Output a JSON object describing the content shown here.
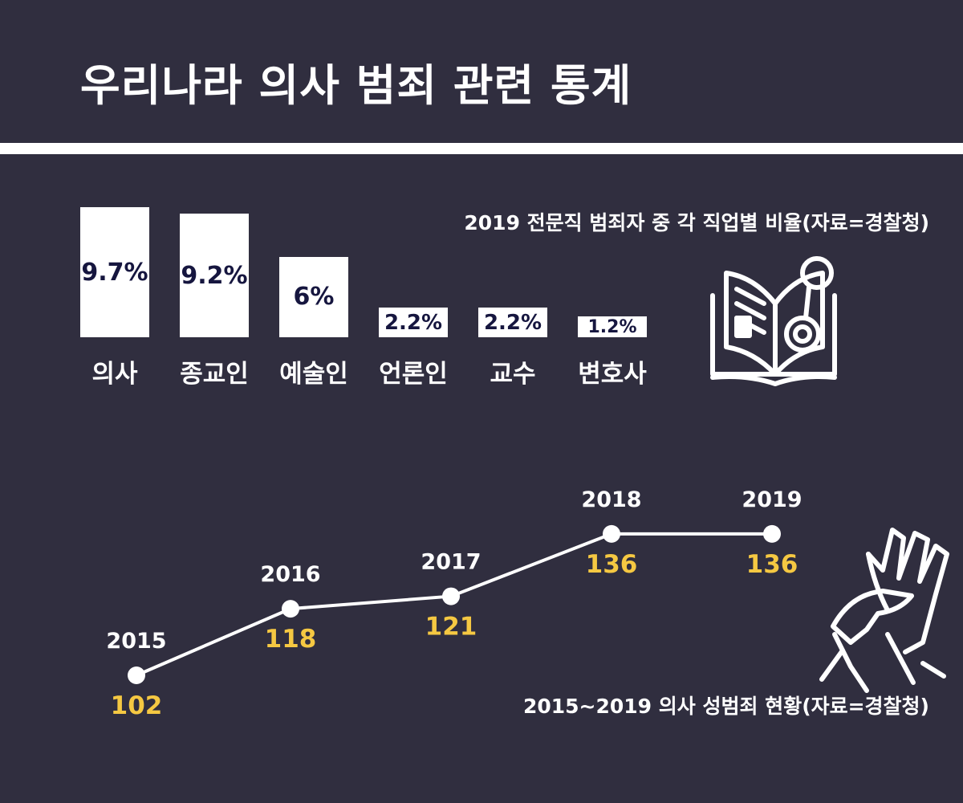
{
  "title": "우리나라 의사 범죄 관련 통계",
  "chart_data": [
    {
      "type": "bar",
      "title": "2019 전문직 범죄자 중 각 직업별 비율(자료=경찰청)",
      "categories": [
        "의사",
        "종교인",
        "예술인",
        "언론인",
        "교수",
        "변호사"
      ],
      "values": [
        9.7,
        9.2,
        6,
        2.2,
        2.2,
        1.2
      ],
      "value_labels": [
        "9.7%",
        "9.2%",
        "6%",
        "2.2%",
        "2.2%",
        "1.2%"
      ],
      "unit": "%"
    },
    {
      "type": "line",
      "title": "2015~2019 의사 성범죄 현황(자료=경찰청)",
      "x": [
        "2015",
        "2016",
        "2017",
        "2018",
        "2019"
      ],
      "values": [
        102,
        118,
        121,
        136,
        136
      ]
    }
  ],
  "icons": [
    "book-handcuffs-icon",
    "grabbing-hands-icon"
  ],
  "colors": {
    "background": "#302e3f",
    "value_text": "#f5c842",
    "bar": "#ffffff",
    "bar_text": "#16163f"
  }
}
